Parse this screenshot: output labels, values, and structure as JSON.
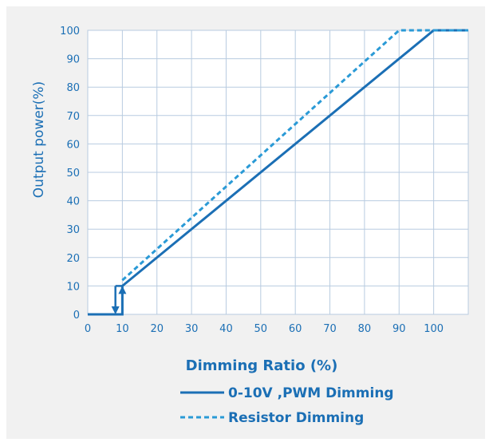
{
  "chart_data": {
    "type": "line",
    "title": "",
    "xlabel": "Dimming Ratio (%)",
    "ylabel": "Output power(%)",
    "xlim": [
      0,
      110
    ],
    "ylim": [
      0,
      100
    ],
    "x_ticks": [
      0,
      10,
      20,
      30,
      40,
      50,
      60,
      70,
      80,
      90,
      100
    ],
    "y_ticks": [
      0,
      10,
      20,
      30,
      40,
      50,
      60,
      70,
      80,
      90,
      100
    ],
    "grid": true,
    "legend_position": "bottom-center",
    "series": [
      {
        "name": "0-10V ,PWM Dimming",
        "style": "solid",
        "color": "#1b6fb5",
        "points": [
          [
            0,
            0
          ],
          [
            10,
            0
          ],
          [
            10,
            10
          ],
          [
            100,
            100
          ],
          [
            110,
            100
          ]
        ]
      },
      {
        "name": "Resistor Dimming",
        "style": "dashed",
        "color": "#2a9ad6",
        "points": [
          [
            10,
            12
          ],
          [
            90,
            100
          ],
          [
            110,
            100
          ]
        ]
      }
    ],
    "hysteresis": {
      "color": "#1b6fb5",
      "down_arrow": {
        "x": 8,
        "from": 10,
        "to": 0
      },
      "up_arrow": {
        "x": 10,
        "from": 0,
        "to": 10
      }
    }
  }
}
